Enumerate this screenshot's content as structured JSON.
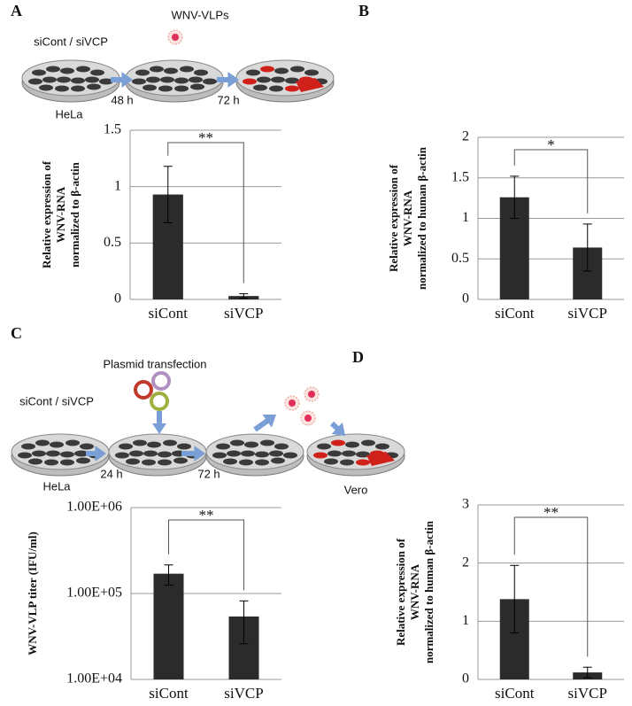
{
  "panels": [
    "A",
    "B",
    "C",
    "D"
  ],
  "schematics": [
    {
      "texts": [
        "siCont / siVCP",
        "HeLa",
        "48 h",
        "WNV-VLPs",
        "72 h"
      ]
    },
    {
      "texts": [
        "Plasmid transfection",
        "siCont / siVCP",
        "HeLa",
        "24 h",
        "72 h",
        "Vero"
      ]
    }
  ],
  "chart_data": [
    {
      "type": "bar",
      "ylabel": [
        "Relative expression of",
        "WNV-RNA",
        "normalized to  β-actin"
      ],
      "categories": [
        "siCont",
        "siVCP"
      ],
      "values": [
        0.93,
        0.03
      ],
      "errors": [
        0.25,
        0.02
      ],
      "color": "#2b2b2b",
      "ylim": [
        0,
        1.5
      ],
      "yticks": [
        0,
        0.5,
        1,
        1.5
      ],
      "grid": true,
      "significance": "**"
    },
    {
      "type": "bar",
      "ylabel": [
        "Relative expression of",
        "WNV-RNA",
        "normalized to human  β-actin"
      ],
      "categories": [
        "siCont",
        "siVCP"
      ],
      "values": [
        1.26,
        0.64
      ],
      "errors": [
        0.26,
        0.29
      ],
      "color": "#2b2b2b",
      "ylim": [
        0,
        2
      ],
      "yticks": [
        0,
        0.5,
        1,
        1.5,
        2
      ],
      "grid": true,
      "significance": "*"
    },
    {
      "type": "bar",
      "ylabel": [
        "WNV-VLP titer (IFU/ml)"
      ],
      "categories": [
        "siCont",
        "siVCP"
      ],
      "values": [
        170000,
        54000
      ],
      "errors": [
        45000,
        28000
      ],
      "color": "#2b2b2b",
      "log_scale": true,
      "ylim": [
        10000,
        1000000
      ],
      "yticks": [
        {
          "value": 10000,
          "label": "1.00E+04"
        },
        {
          "value": 100000,
          "label": "1.00E+05"
        },
        {
          "value": 1000000,
          "label": "1.00E+06"
        }
      ],
      "grid": true,
      "significance": "**"
    },
    {
      "type": "bar",
      "ylabel": [
        "Relative expression of",
        "WNV-RNA",
        "normalized to human β-actin"
      ],
      "categories": [
        "siCont",
        "siVCP"
      ],
      "values": [
        1.38,
        0.12
      ],
      "errors": [
        0.58,
        0.09
      ],
      "color": "#2b2b2b",
      "ylim": [
        0,
        3
      ],
      "yticks": [
        0,
        1,
        2,
        3
      ],
      "grid": true,
      "significance": "**"
    }
  ]
}
